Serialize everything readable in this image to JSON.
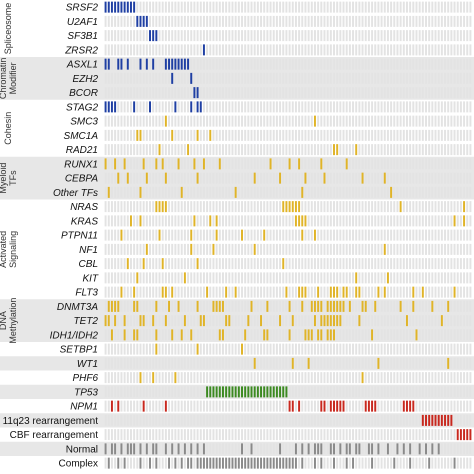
{
  "chart_data": {
    "type": "heatmap",
    "title": "",
    "columns": 116,
    "colors": {
      "background_cell": "#e3e3e3",
      "group_band": "#e7e7e7",
      "spliceosome": "#1f3fa3",
      "chromatin": "#1f3fa3",
      "cohesin": "#1f3fa3",
      "mutation": "#e0b428",
      "tp53": "#3c8a21",
      "npm1": "#c8281e",
      "cytogenetics": "#8a8a8a"
    },
    "groups": [
      {
        "name": "Spliceosome",
        "band": false,
        "rows": [
          0,
          3
        ]
      },
      {
        "name": "Chromatin Modifier",
        "band": true,
        "rows": [
          4,
          6
        ]
      },
      {
        "name": "Cohesin",
        "band": false,
        "rows": [
          7,
          10
        ]
      },
      {
        "name": "Myeloid TFs",
        "band": true,
        "rows": [
          11,
          13
        ]
      },
      {
        "name": "Activated Signaling",
        "band": false,
        "rows": [
          14,
          20
        ]
      },
      {
        "name": "DNA Methylation",
        "band": true,
        "rows": [
          21,
          23
        ]
      },
      {
        "name": "",
        "band": false,
        "rows": [
          24,
          24
        ]
      },
      {
        "name": "",
        "band": true,
        "rows": [
          25,
          25
        ]
      },
      {
        "name": "",
        "band": false,
        "rows": [
          26,
          26
        ]
      },
      {
        "name": "",
        "band": true,
        "rows": [
          27,
          27
        ]
      },
      {
        "name": "",
        "band": false,
        "rows": [
          28,
          28
        ]
      },
      {
        "name": "",
        "band": true,
        "rows": [
          29,
          29
        ]
      },
      {
        "name": "",
        "band": false,
        "rows": [
          30,
          30
        ]
      },
      {
        "name": "",
        "band": true,
        "rows": [
          31,
          31
        ]
      },
      {
        "name": "",
        "band": false,
        "rows": [
          32,
          32
        ]
      }
    ],
    "rows": [
      {
        "label": "SRSF2",
        "italic": true,
        "colorKey": "spliceosome",
        "cols": [
          0,
          1,
          2,
          3,
          4,
          5,
          6,
          7,
          8,
          9
        ]
      },
      {
        "label": "U2AF1",
        "italic": true,
        "colorKey": "spliceosome",
        "cols": [
          10,
          11,
          12,
          13
        ]
      },
      {
        "label": "SF3B1",
        "italic": true,
        "colorKey": "spliceosome",
        "cols": [
          14,
          15,
          16
        ]
      },
      {
        "label": "ZRSR2",
        "italic": true,
        "colorKey": "spliceosome",
        "cols": [
          31
        ]
      },
      {
        "label": "ASXL1",
        "italic": true,
        "colorKey": "chromatin",
        "cols": [
          0,
          1,
          4,
          5,
          7,
          11,
          13,
          15,
          19,
          20,
          21,
          22,
          23,
          24,
          25,
          26
        ]
      },
      {
        "label": "EZH2",
        "italic": true,
        "colorKey": "chromatin",
        "cols": [
          21,
          27
        ]
      },
      {
        "label": "BCOR",
        "italic": true,
        "colorKey": "chromatin",
        "cols": [
          28,
          29
        ]
      },
      {
        "label": "STAG2",
        "italic": true,
        "colorKey": "cohesin",
        "cols": [
          0,
          1,
          2,
          3,
          9,
          14,
          22,
          27,
          29,
          30
        ]
      },
      {
        "label": "SMC3",
        "italic": true,
        "colorKey": "mutation",
        "cols": [
          19,
          66
        ]
      },
      {
        "label": "SMC1A",
        "italic": true,
        "colorKey": "mutation",
        "cols": [
          10,
          11,
          21,
          29,
          33
        ]
      },
      {
        "label": "RAD21",
        "italic": true,
        "colorKey": "mutation",
        "cols": [
          17,
          26,
          72,
          73,
          79
        ]
      },
      {
        "label": "RUNX1",
        "italic": true,
        "colorKey": "mutation",
        "cols": [
          0,
          3,
          6,
          12,
          16,
          18,
          23,
          28,
          31,
          36,
          52,
          58,
          61,
          68,
          76
        ]
      },
      {
        "label": "CEBPA",
        "italic": true,
        "colorKey": "mutation",
        "cols": [
          4,
          7,
          13,
          19,
          29,
          47,
          55,
          63,
          69,
          81,
          88
        ]
      },
      {
        "label": "Other TFs",
        "italic": true,
        "colorKey": "mutation",
        "cols": [
          1,
          11,
          24,
          41,
          62,
          90
        ]
      },
      {
        "label": "NRAS",
        "italic": true,
        "colorKey": "mutation",
        "cols": [
          16,
          17,
          18,
          19,
          56,
          57,
          58,
          59,
          60,
          61,
          93,
          113
        ]
      },
      {
        "label": "KRAS",
        "italic": true,
        "colorKey": "mutation",
        "cols": [
          8,
          11,
          28,
          33,
          35,
          60,
          61,
          62,
          63,
          110,
          113
        ]
      },
      {
        "label": "PTPN11",
        "italic": true,
        "colorKey": "mutation",
        "cols": [
          5,
          17,
          27,
          35,
          43,
          50,
          62,
          66
        ]
      },
      {
        "label": "NF1",
        "italic": true,
        "colorKey": "mutation",
        "cols": [
          13,
          27,
          34,
          47,
          88
        ]
      },
      {
        "label": "CBL",
        "italic": true,
        "colorKey": "mutation",
        "cols": [
          7,
          12,
          18,
          29,
          56
        ]
      },
      {
        "label": "KIT",
        "italic": true,
        "colorKey": "mutation",
        "cols": [
          10,
          25,
          79,
          89
        ]
      },
      {
        "label": "FLT3",
        "italic": true,
        "colorKey": "mutation",
        "cols": [
          5,
          9,
          18,
          19,
          21,
          32,
          38,
          41,
          57,
          61,
          62,
          63,
          67,
          71,
          72,
          73,
          75,
          76,
          79,
          80,
          86,
          88,
          97,
          100,
          110
        ]
      },
      {
        "label": "DNMT3A",
        "italic": true,
        "colorKey": "mutation",
        "cols": [
          1,
          2,
          3,
          4,
          9,
          10,
          16,
          20,
          23,
          29,
          34,
          35,
          36,
          37,
          46,
          51,
          58,
          62,
          65,
          66,
          67,
          68,
          70,
          71,
          72,
          73,
          74,
          75,
          77,
          81,
          82,
          85,
          93,
          97,
          103,
          108
        ]
      },
      {
        "label": "TET2",
        "italic": true,
        "colorKey": "mutation",
        "cols": [
          0,
          1,
          3,
          6,
          11,
          12,
          15,
          19,
          25,
          30,
          31,
          38,
          39,
          45,
          49,
          55,
          59,
          66,
          68,
          69,
          70,
          71,
          72,
          73,
          74,
          80,
          95,
          106
        ]
      },
      {
        "label": "IDH1/IDH2",
        "italic": true,
        "colorKey": "mutation",
        "cols": [
          2,
          6,
          9,
          10,
          16,
          21,
          24,
          27,
          36,
          37,
          44,
          50,
          51,
          58,
          63,
          64,
          65,
          67,
          68,
          70,
          71,
          72,
          84,
          98
        ]
      },
      {
        "label": "SETBP1",
        "italic": true,
        "colorKey": "mutation",
        "cols": [
          16,
          29,
          43
        ]
      },
      {
        "label": "WT1",
        "italic": true,
        "colorKey": "mutation",
        "cols": [
          47,
          59,
          64,
          86,
          108
        ]
      },
      {
        "label": "PHF6",
        "italic": true,
        "colorKey": "mutation",
        "cols": [
          11,
          15,
          22,
          81
        ]
      },
      {
        "label": "TP53",
        "italic": true,
        "colorKey": "tp53",
        "cols": [
          32,
          33,
          34,
          35,
          36,
          37,
          38,
          39,
          40,
          41,
          42,
          43,
          44,
          45,
          46,
          47,
          48,
          49,
          50,
          51,
          52,
          53,
          54,
          55,
          56,
          57
        ]
      },
      {
        "label": "NPM1",
        "italic": true,
        "colorKey": "npm1",
        "cols": [
          2,
          4,
          12,
          19,
          58,
          59,
          61,
          68,
          69,
          71,
          72,
          73,
          74,
          75,
          82,
          83,
          84,
          85,
          94,
          95,
          96,
          97
        ]
      },
      {
        "label": "11q23 rearrangement",
        "italic": false,
        "colorKey": "npm1",
        "cols": [
          100,
          101,
          102,
          103,
          104,
          105,
          106,
          107,
          108,
          109
        ]
      },
      {
        "label": "CBF rearrangement",
        "italic": false,
        "colorKey": "npm1",
        "cols": [
          111,
          112,
          113,
          114,
          115
        ]
      },
      {
        "label": "Normal",
        "italic": false,
        "colorKey": "cytogenetics",
        "cols": [
          0,
          2,
          3,
          5,
          7,
          8,
          9,
          11,
          13,
          15,
          16,
          19,
          21,
          23,
          25,
          27,
          29,
          31,
          43,
          46,
          55,
          60,
          62,
          64,
          66,
          67,
          68,
          71,
          72,
          74,
          76,
          77,
          79,
          80,
          83,
          84,
          86,
          89,
          92,
          94,
          96,
          99,
          101,
          103,
          105
        ]
      },
      {
        "label": "Complex",
        "italic": false,
        "colorKey": "cytogenetics",
        "cols": [
          1,
          4,
          6,
          11,
          14,
          16,
          20,
          22,
          24,
          26,
          27,
          29,
          30,
          31,
          32,
          33,
          34,
          35,
          36,
          37,
          38,
          39,
          40,
          41,
          42,
          43,
          44,
          45,
          46,
          47,
          48,
          49,
          50,
          51,
          52,
          53,
          54,
          55,
          56,
          57,
          58,
          59,
          60,
          62,
          66,
          68,
          72,
          76,
          78,
          84,
          91,
          96,
          102,
          110
        ]
      }
    ]
  }
}
